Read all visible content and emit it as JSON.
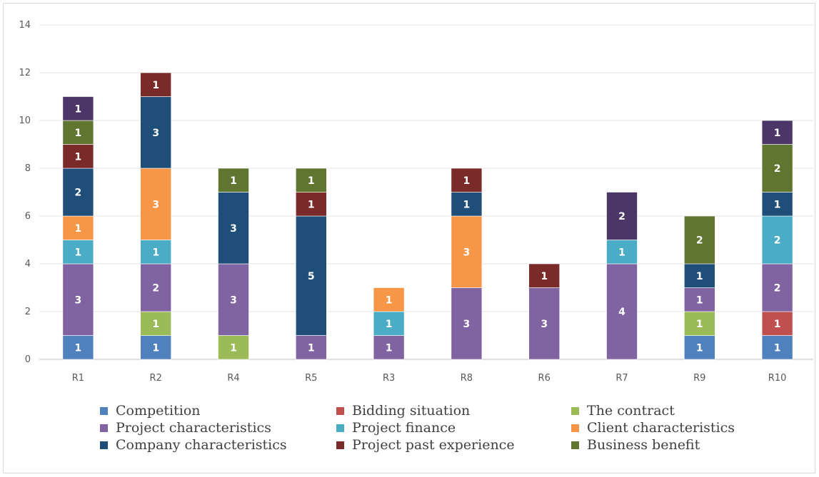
{
  "chart_data": {
    "type": "bar",
    "stacked": true,
    "categories": [
      "R1",
      "R2",
      "R4",
      "R5",
      "R3",
      "R8",
      "R6",
      "R7",
      "R9",
      "R10"
    ],
    "ylim": [
      0,
      14
    ],
    "yticks": [
      0,
      2,
      4,
      6,
      8,
      10,
      12,
      14
    ],
    "grid": true,
    "legend_position": "bottom",
    "series": [
      {
        "name": "Competition",
        "color": "#4f81bd",
        "values": [
          1,
          1,
          0,
          0,
          0,
          0,
          0,
          0,
          1,
          1
        ]
      },
      {
        "name": "Bidding situation",
        "color": "#c0504d",
        "values": [
          0,
          0,
          0,
          0,
          0,
          0,
          0,
          0,
          0,
          1
        ]
      },
      {
        "name": "The contract",
        "color": "#9bbb59",
        "values": [
          0,
          1,
          1,
          0,
          0,
          0,
          0,
          0,
          1,
          0
        ]
      },
      {
        "name": "Project characteristics",
        "color": "#8064a2",
        "values": [
          3,
          2,
          3,
          1,
          1,
          3,
          3,
          4,
          1,
          2
        ]
      },
      {
        "name": "Project finance",
        "color": "#4bacc6",
        "values": [
          1,
          1,
          0,
          0,
          1,
          0,
          0,
          1,
          0,
          2
        ]
      },
      {
        "name": "Client characteristics",
        "color": "#f79646",
        "values": [
          1,
          3,
          0,
          0,
          1,
          3,
          0,
          0,
          0,
          0
        ]
      },
      {
        "name": "Company characteristics",
        "color": "#1f4e79",
        "values": [
          2,
          3,
          3,
          5,
          0,
          1,
          0,
          0,
          1,
          1
        ]
      },
      {
        "name": "Project past experience",
        "color": "#7b2a2a",
        "values": [
          1,
          1,
          0,
          1,
          0,
          1,
          1,
          0,
          0,
          0
        ]
      },
      {
        "name": "Business benefit",
        "color": "#5f7530",
        "values": [
          1,
          0,
          1,
          1,
          0,
          0,
          0,
          0,
          2,
          2
        ]
      },
      {
        "name": "",
        "color": "#4b3667",
        "values": [
          1,
          0,
          0,
          0,
          0,
          0,
          0,
          2,
          0,
          1
        ]
      }
    ]
  }
}
